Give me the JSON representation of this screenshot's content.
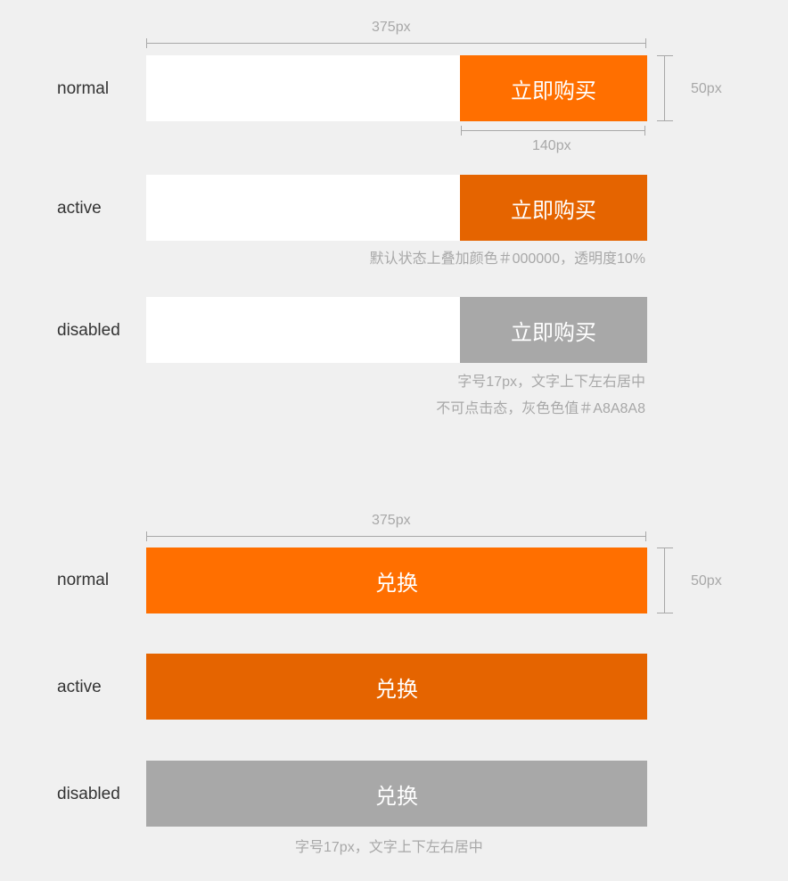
{
  "colors": {
    "normal": "#ff6f00",
    "active": "#e56400",
    "disabled": "#a8a8a8",
    "background": "#f0f0f0"
  },
  "section1": {
    "width_label": "375px",
    "height_label": "50px",
    "button_width_label": "140px",
    "states": {
      "normal": "normal",
      "active": "active",
      "disabled": "disabled"
    },
    "button_label": "立即购买",
    "active_note": "默认状态上叠加颜色＃000000，透明度10%",
    "disabled_note_line1": "字号17px，文字上下左右居中",
    "disabled_note_line2": "不可点击态，灰色色值＃A8A8A8"
  },
  "section2": {
    "width_label": "375px",
    "height_label": "50px",
    "states": {
      "normal": "normal",
      "active": "active",
      "disabled": "disabled"
    },
    "button_label": "兑换",
    "note": "字号17px，文字上下左右居中"
  }
}
